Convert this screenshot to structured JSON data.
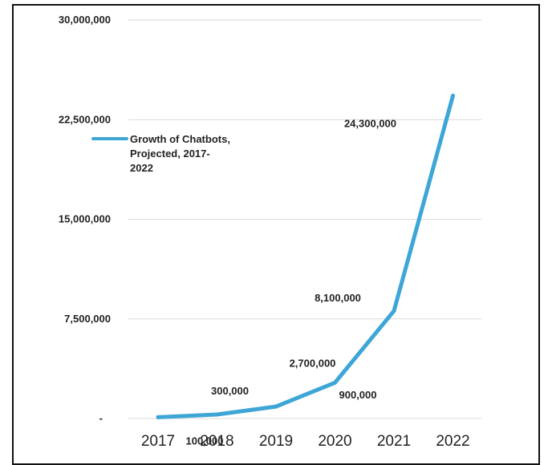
{
  "chart_data": {
    "type": "line",
    "categories": [
      "2017",
      "2018",
      "2019",
      "2020",
      "2021",
      "2022"
    ],
    "series": [
      {
        "name": "Growth of Chatbots, Projected, 2017-2022",
        "values": [
          100000,
          300000,
          900000,
          2700000,
          8100000,
          24300000
        ],
        "color": "#3ea6d6"
      }
    ],
    "data_labels": [
      "100,000",
      "300,000",
      "900,000",
      "2,700,000",
      "8,100,000",
      "24,300,000"
    ],
    "y_ticks": [
      {
        "value": 0,
        "label": "-"
      },
      {
        "value": 7500000,
        "label": "7,500,000"
      },
      {
        "value": 15000000,
        "label": "15,000,000"
      },
      {
        "value": 22500000,
        "label": "22,500,000"
      },
      {
        "value": 30000000,
        "label": "30,000,000"
      }
    ],
    "legend_lines": [
      "Growth of Chatbots,",
      "Projected, 2017-",
      "2022"
    ],
    "ylim": [
      0,
      30000000
    ],
    "grid": true,
    "legend_position": "left"
  }
}
